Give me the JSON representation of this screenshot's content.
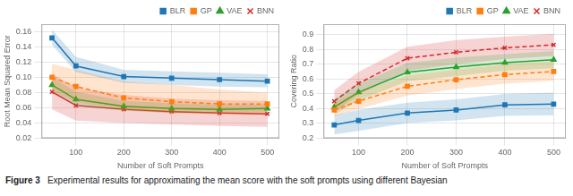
{
  "chart_data": [
    {
      "type": "line",
      "x_label": "Number of Soft Prompts",
      "y_label": "Root Mean Squared Error",
      "x": [
        50,
        100,
        200,
        300,
        400,
        500
      ],
      "xlim": [
        28,
        525
      ],
      "xticks": [
        100,
        200,
        300,
        400,
        500
      ],
      "ylim": [
        0.02,
        0.17
      ],
      "yticks": [
        0.02,
        0.04,
        0.06,
        0.08,
        {
          "value": 0.1,
          "label": "0.10"
        },
        0.12,
        0.14,
        0.16
      ],
      "grid": true,
      "legend": "upper right",
      "series": [
        {
          "name": "BLR",
          "color": "#1f77b4",
          "marker": "square",
          "line_style": "solid",
          "values": [
            0.152,
            0.115,
            0.101,
            0.099,
            0.097,
            0.095
          ],
          "lower": [
            0.143,
            0.107,
            0.093,
            0.09,
            0.088,
            0.087
          ],
          "upper": [
            0.163,
            0.127,
            0.11,
            0.108,
            0.106,
            0.104
          ]
        },
        {
          "name": "GP",
          "color": "#ff7f0e",
          "marker": "square",
          "line_style": "dashed",
          "values": [
            0.1,
            0.088,
            0.073,
            0.068,
            0.065,
            0.065
          ],
          "lower": [
            0.082,
            0.068,
            0.057,
            0.053,
            0.052,
            0.052
          ],
          "upper": [
            0.118,
            0.11,
            0.095,
            0.09,
            0.084,
            0.08
          ]
        },
        {
          "name": "VAE",
          "color": "#2ca02c",
          "marker": "triangle",
          "line_style": "solid",
          "values": [
            0.09,
            0.071,
            0.062,
            0.059,
            0.058,
            0.059
          ],
          "lower": [
            0.082,
            0.063,
            0.056,
            0.053,
            0.053,
            0.054
          ],
          "upper": [
            0.1,
            0.081,
            0.069,
            0.066,
            0.064,
            0.064
          ]
        },
        {
          "name": "BNN",
          "color": "#d62728",
          "marker": "x",
          "line_style": "solid",
          "values": [
            0.081,
            0.063,
            0.058,
            0.055,
            0.053,
            0.052
          ],
          "lower": [
            0.058,
            0.043,
            0.04,
            0.038,
            0.036,
            0.035
          ],
          "upper": [
            0.105,
            0.086,
            0.077,
            0.072,
            0.07,
            0.069
          ]
        }
      ]
    },
    {
      "type": "line",
      "x_label": "Number of Soft Prompts",
      "y_label": "Covering Ratio",
      "x": [
        50,
        100,
        200,
        300,
        400,
        500
      ],
      "xlim": [
        28,
        525
      ],
      "xticks": [
        100,
        200,
        300,
        400,
        500
      ],
      "ylim": [
        0.2,
        0.97
      ],
      "yticks": [
        0.2,
        0.3,
        0.4,
        0.5,
        0.6,
        0.7,
        0.8,
        0.9
      ],
      "grid": true,
      "legend": "upper right",
      "series": [
        {
          "name": "BLR",
          "color": "#1f77b4",
          "marker": "square",
          "line_style": "solid",
          "values": [
            0.29,
            0.32,
            0.37,
            0.39,
            0.425,
            0.43
          ],
          "lower": [
            0.225,
            0.25,
            0.302,
            0.32,
            0.35,
            0.355
          ],
          "upper": [
            0.355,
            0.392,
            0.44,
            0.462,
            0.498,
            0.508
          ]
        },
        {
          "name": "GP",
          "color": "#ff7f0e",
          "marker": "square",
          "line_style": "dashed",
          "values": [
            0.39,
            0.45,
            0.55,
            0.595,
            0.63,
            0.65
          ],
          "lower": [
            0.348,
            0.398,
            0.488,
            0.532,
            0.568,
            0.588
          ],
          "upper": [
            0.442,
            0.512,
            0.622,
            0.662,
            0.698,
            0.718
          ]
        },
        {
          "name": "VAE",
          "color": "#2ca02c",
          "marker": "triangle",
          "line_style": "solid",
          "values": [
            0.41,
            0.51,
            0.645,
            0.68,
            0.71,
            0.73
          ],
          "lower": [
            0.36,
            0.455,
            0.585,
            0.62,
            0.655,
            0.673
          ],
          "upper": [
            0.462,
            0.568,
            0.708,
            0.743,
            0.768,
            0.788
          ]
        },
        {
          "name": "BNN",
          "color": "#d62728",
          "marker": "x",
          "line_style": "dashed",
          "values": [
            0.45,
            0.57,
            0.74,
            0.78,
            0.81,
            0.83
          ],
          "lower": [
            0.375,
            0.495,
            0.655,
            0.7,
            0.735,
            0.755
          ],
          "upper": [
            0.525,
            0.648,
            0.818,
            0.862,
            0.885,
            0.905
          ]
        }
      ]
    }
  ],
  "annotations": [
    "Figure 3",
    "Experimental results for approximating the mean score with the soft prompts using different Bayesian"
  ]
}
